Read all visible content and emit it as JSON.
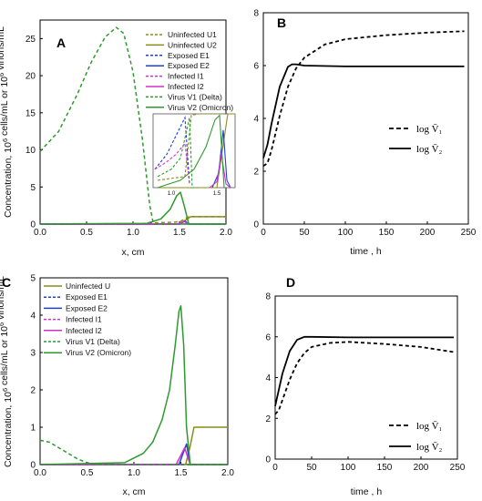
{
  "chart_data": [
    {
      "panel": "A",
      "type": "line",
      "xlabel": "x, cm",
      "ylabel": "Concentration, 10^6 cells/mL or 10^6 virions/mL",
      "xlim": [
        0,
        2.0
      ],
      "ylim": [
        0,
        27.5
      ],
      "xticks": [
        "0.0",
        "0.5",
        "1.0",
        "1.5",
        "2.0"
      ],
      "yticks": [
        "0",
        "5",
        "10",
        "15",
        "20",
        "25"
      ],
      "legend": "top-right",
      "series": [
        {
          "name": "Uninfected U1",
          "color": "#8b8b1a",
          "dash": true,
          "x": [
            0,
            1.14,
            1.2,
            1.5,
            1.6,
            2.0
          ],
          "y": [
            0,
            0,
            0.15,
            0.3,
            1.0,
            1.0
          ]
        },
        {
          "name": "Uninfected U2",
          "color": "#8b8b1a",
          "dash": false,
          "x": [
            0,
            1.5,
            1.62,
            2.0
          ],
          "y": [
            0,
            0,
            1.0,
            1.0
          ]
        },
        {
          "name": "Exposed E1",
          "color": "#1f3fd6",
          "dash": true,
          "x": [
            0,
            1.1,
            1.18,
            1.2
          ],
          "y": [
            0,
            0,
            0.2,
            0
          ]
        },
        {
          "name": "Exposed E2",
          "color": "#1f3fd6",
          "dash": false,
          "x": [
            0,
            1.5,
            1.56,
            1.6,
            2.0
          ],
          "y": [
            0,
            0,
            0.4,
            0,
            0
          ]
        },
        {
          "name": "Infected I1",
          "color": "#cc33cc",
          "dash": true,
          "x": [
            0,
            1.05,
            1.15,
            1.2
          ],
          "y": [
            0,
            0,
            0.1,
            0
          ]
        },
        {
          "name": "Infected I2",
          "color": "#cc33cc",
          "dash": false,
          "x": [
            0,
            1.48,
            1.55,
            1.6,
            2.0
          ],
          "y": [
            0,
            0,
            0.35,
            0,
            0
          ]
        },
        {
          "name": "Virus V1 (Delta)",
          "color": "#2e9a2e",
          "dash": true,
          "x": [
            0,
            0.2,
            0.4,
            0.55,
            0.7,
            0.82,
            0.9,
            1.0,
            1.1,
            1.18,
            1.22,
            2.0
          ],
          "y": [
            9.8,
            12.5,
            17.5,
            21.8,
            25.2,
            26.5,
            25.7,
            20.5,
            11.5,
            2.5,
            0,
            0
          ]
        },
        {
          "name": "Virus V2 (Omicron)",
          "color": "#2e9a2e",
          "dash": false,
          "x": [
            0,
            1.15,
            1.3,
            1.4,
            1.47,
            1.51,
            1.55,
            1.6,
            2.0
          ],
          "y": [
            0,
            0.1,
            0.7,
            2.0,
            3.8,
            4.3,
            2.5,
            0,
            0
          ]
        }
      ],
      "inset": {
        "xlim": [
          0.8,
          1.7
        ],
        "xticks": [
          "1.0",
          "1.5"
        ],
        "series": [
          {
            "color": "#8b8b1a",
            "dash": true,
            "x": [
              0.85,
              1.15,
              1.22,
              1.3,
              1.55
            ],
            "y": [
              0.1,
              0.15,
              0.98,
              1.0,
              1.0
            ]
          },
          {
            "color": "#8b8b1a",
            "dash": false,
            "x": [
              0.85,
              1.5,
              1.62,
              1.7
            ],
            "y": [
              0.0,
              0.0,
              1.0,
              1.0
            ]
          },
          {
            "color": "#1f3fd6",
            "dash": true,
            "x": [
              0.82,
              0.95,
              1.05,
              1.15,
              1.2
            ],
            "y": [
              0.25,
              0.45,
              0.7,
              0.95,
              0.05
            ]
          },
          {
            "color": "#1f3fd6",
            "dash": false,
            "x": [
              1.45,
              1.52,
              1.57,
              1.61,
              1.65
            ],
            "y": [
              0.0,
              0.2,
              0.78,
              0.1,
              0.0
            ]
          },
          {
            "color": "#cc33cc",
            "dash": true,
            "x": [
              0.82,
              0.95,
              1.05,
              1.15,
              1.2
            ],
            "y": [
              0.25,
              0.35,
              0.45,
              0.6,
              0.05
            ]
          },
          {
            "color": "#cc33cc",
            "dash": false,
            "x": [
              1.42,
              1.5,
              1.55,
              1.6,
              1.65
            ],
            "y": [
              0.0,
              0.08,
              0.45,
              0.05,
              0.0
            ]
          },
          {
            "color": "#2e9a2e",
            "dash": true,
            "x": [
              0.85,
              1.0,
              1.1,
              1.2,
              1.23,
              1.3
            ],
            "y": [
              0.15,
              0.25,
              0.4,
              0.95,
              0.0,
              0.0
            ]
          },
          {
            "color": "#2e9a2e",
            "dash": false,
            "x": [
              0.85,
              1.1,
              1.25,
              1.38,
              1.48,
              1.53,
              1.58
            ],
            "y": [
              0.0,
              0.1,
              0.25,
              0.55,
              0.92,
              0.98,
              0.0
            ]
          }
        ]
      }
    },
    {
      "panel": "B",
      "type": "line",
      "xlabel": "time , h",
      "ylabel": "",
      "xlim": [
        0,
        250
      ],
      "ylim": [
        0,
        8
      ],
      "xticks": [
        "0",
        "50",
        "100",
        "150",
        "200",
        "250"
      ],
      "yticks": [
        "0",
        "2",
        "4",
        "6",
        "8"
      ],
      "legend": "right",
      "series": [
        {
          "name": "log V̄₁",
          "color": "#000000",
          "dash": true,
          "x": [
            0,
            5,
            10,
            20,
            30,
            40,
            50,
            75,
            100,
            150,
            200,
            245
          ],
          "y": [
            2.2,
            2.3,
            2.8,
            4.1,
            5.2,
            5.9,
            6.3,
            6.8,
            7.0,
            7.15,
            7.25,
            7.3
          ]
        },
        {
          "name": "log V̄₂",
          "color": "#000000",
          "dash": false,
          "x": [
            0,
            5,
            10,
            20,
            30,
            35,
            40,
            50,
            100,
            150,
            200,
            245
          ],
          "y": [
            2.5,
            3.0,
            3.8,
            5.2,
            5.95,
            6.05,
            6.05,
            6.0,
            5.97,
            5.97,
            5.97,
            5.97
          ]
        }
      ]
    },
    {
      "panel": "C",
      "type": "line",
      "xlabel": "x, cm",
      "ylabel": "Concentration, 10^6 cells/mL or 10^6 virions/mL",
      "xlim": [
        0,
        2.0
      ],
      "ylim": [
        0,
        5
      ],
      "xticks": [
        "0.0",
        "0.5",
        "1.0",
        "1.5",
        "2.0"
      ],
      "yticks": [
        "0",
        "1",
        "2",
        "3",
        "4",
        "5"
      ],
      "legend": "top-left",
      "series": [
        {
          "name": "Uninfected U",
          "color": "#8b8b1a",
          "dash": false,
          "x": [
            0,
            1.55,
            1.6,
            1.64,
            2.0
          ],
          "y": [
            0,
            0,
            0.5,
            1.0,
            1.0
          ]
        },
        {
          "name": "Exposed E1",
          "color": "#1f3fd6",
          "dash": true,
          "x": [
            0,
            2.0
          ],
          "y": [
            0,
            0
          ]
        },
        {
          "name": "Exposed E2",
          "color": "#1f3fd6",
          "dash": false,
          "x": [
            0,
            1.48,
            1.56,
            1.6,
            2.0
          ],
          "y": [
            0,
            0,
            0.55,
            0,
            0
          ]
        },
        {
          "name": "Infected I1",
          "color": "#cc33cc",
          "dash": true,
          "x": [
            0,
            2.0
          ],
          "y": [
            0,
            0
          ]
        },
        {
          "name": "Infected I2",
          "color": "#cc33cc",
          "dash": false,
          "x": [
            0,
            1.45,
            1.54,
            1.6,
            2.0
          ],
          "y": [
            0,
            0,
            0.45,
            0,
            0
          ]
        },
        {
          "name": "Virus V1 (Delta)",
          "color": "#2e9a2e",
          "dash": true,
          "x": [
            0,
            0.1,
            0.2,
            0.3,
            0.4,
            0.5,
            0.6,
            2.0
          ],
          "y": [
            0.65,
            0.6,
            0.45,
            0.3,
            0.15,
            0.05,
            0,
            0
          ]
        },
        {
          "name": "Virus V2 (Omicron)",
          "color": "#2e9a2e",
          "dash": false,
          "x": [
            0,
            0.9,
            1.1,
            1.2,
            1.3,
            1.38,
            1.44,
            1.48,
            1.5,
            1.53,
            1.56,
            1.6,
            2.0
          ],
          "y": [
            0,
            0.05,
            0.3,
            0.6,
            1.2,
            2.0,
            3.2,
            4.1,
            4.25,
            3.2,
            1.0,
            0,
            0
          ]
        }
      ]
    },
    {
      "panel": "D",
      "type": "line",
      "xlabel": "time , h",
      "ylabel": "",
      "xlim": [
        0,
        250
      ],
      "ylim": [
        0,
        8
      ],
      "xticks": [
        "0",
        "50",
        "100",
        "150",
        "200",
        "250"
      ],
      "yticks": [
        "0",
        "2",
        "4",
        "6",
        "8"
      ],
      "legend": "right",
      "series": [
        {
          "name": "log V̄₁",
          "color": "#000000",
          "dash": true,
          "x": [
            0,
            5,
            10,
            20,
            30,
            40,
            50,
            75,
            100,
            150,
            200,
            245
          ],
          "y": [
            2.2,
            2.4,
            2.9,
            3.9,
            4.7,
            5.2,
            5.5,
            5.7,
            5.75,
            5.65,
            5.5,
            5.25
          ]
        },
        {
          "name": "log V̄₂",
          "color": "#000000",
          "dash": false,
          "x": [
            0,
            5,
            10,
            20,
            30,
            40,
            50,
            100,
            150,
            200,
            245
          ],
          "y": [
            2.6,
            3.4,
            4.2,
            5.3,
            5.85,
            6.0,
            6.0,
            5.97,
            5.97,
            5.97,
            5.97
          ]
        }
      ]
    }
  ]
}
